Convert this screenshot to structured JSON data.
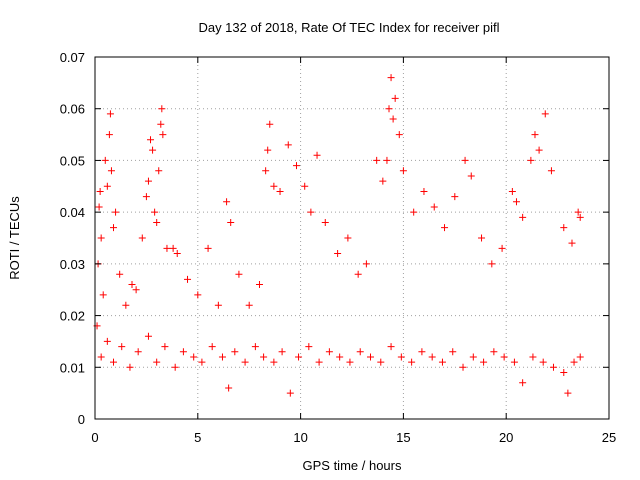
{
  "chart_data": {
    "type": "scatter",
    "title": "Day 132 of 2018, Rate Of TEC Index for receiver pifl",
    "xlabel": "GPS time / hours",
    "ylabel": "ROTI / TECUs",
    "xlim": [
      0,
      25
    ],
    "ylim": [
      0,
      0.07
    ],
    "xticks": [
      0,
      5,
      10,
      15,
      20,
      25
    ],
    "xtick_labels": [
      "0",
      "5",
      "10",
      "15",
      "20",
      "25"
    ],
    "yticks": [
      0,
      0.01,
      0.02,
      0.03,
      0.04,
      0.05,
      0.06,
      0.07
    ],
    "ytick_labels": [
      "0",
      "0.01",
      "0.02",
      "0.03",
      "0.04",
      "0.05",
      "0.06",
      "0.07"
    ],
    "grid": true,
    "marker": "+",
    "color": "#ff0000",
    "series": [
      {
        "name": "",
        "points": [
          [
            0.1,
            0.018
          ],
          [
            0.15,
            0.03
          ],
          [
            0.2,
            0.041
          ],
          [
            0.25,
            0.044
          ],
          [
            0.3,
            0.035
          ],
          [
            0.4,
            0.024
          ],
          [
            0.5,
            0.05
          ],
          [
            0.6,
            0.045
          ],
          [
            0.7,
            0.055
          ],
          [
            0.75,
            0.059
          ],
          [
            0.8,
            0.048
          ],
          [
            0.9,
            0.037
          ],
          [
            1.0,
            0.04
          ],
          [
            1.2,
            0.028
          ],
          [
            1.5,
            0.022
          ],
          [
            1.8,
            0.026
          ],
          [
            2.0,
            0.025
          ],
          [
            2.3,
            0.035
          ],
          [
            2.5,
            0.043
          ],
          [
            2.6,
            0.046
          ],
          [
            2.7,
            0.054
          ],
          [
            2.8,
            0.052
          ],
          [
            2.9,
            0.04
          ],
          [
            3.0,
            0.038
          ],
          [
            3.1,
            0.048
          ],
          [
            3.2,
            0.057
          ],
          [
            3.25,
            0.06
          ],
          [
            3.3,
            0.055
          ],
          [
            3.5,
            0.033
          ],
          [
            3.8,
            0.033
          ],
          [
            4.0,
            0.032
          ],
          [
            4.5,
            0.027
          ],
          [
            5.0,
            0.024
          ],
          [
            5.5,
            0.033
          ],
          [
            6.0,
            0.022
          ],
          [
            6.4,
            0.042
          ],
          [
            6.6,
            0.038
          ],
          [
            7.0,
            0.028
          ],
          [
            7.5,
            0.022
          ],
          [
            8.0,
            0.026
          ],
          [
            8.3,
            0.048
          ],
          [
            8.4,
            0.052
          ],
          [
            8.5,
            0.057
          ],
          [
            8.7,
            0.045
          ],
          [
            9.0,
            0.044
          ],
          [
            9.4,
            0.053
          ],
          [
            9.8,
            0.049
          ],
          [
            10.2,
            0.045
          ],
          [
            10.5,
            0.04
          ],
          [
            10.8,
            0.051
          ],
          [
            11.2,
            0.038
          ],
          [
            11.8,
            0.032
          ],
          [
            12.3,
            0.035
          ],
          [
            12.8,
            0.028
          ],
          [
            13.2,
            0.03
          ],
          [
            13.7,
            0.05
          ],
          [
            14.0,
            0.046
          ],
          [
            14.2,
            0.05
          ],
          [
            14.3,
            0.06
          ],
          [
            14.4,
            0.066
          ],
          [
            14.5,
            0.058
          ],
          [
            14.6,
            0.062
          ],
          [
            14.8,
            0.055
          ],
          [
            15.0,
            0.048
          ],
          [
            15.5,
            0.04
          ],
          [
            16.0,
            0.044
          ],
          [
            16.5,
            0.041
          ],
          [
            17.0,
            0.037
          ],
          [
            17.5,
            0.043
          ],
          [
            18.0,
            0.05
          ],
          [
            18.3,
            0.047
          ],
          [
            18.8,
            0.035
          ],
          [
            19.3,
            0.03
          ],
          [
            19.8,
            0.033
          ],
          [
            20.3,
            0.044
          ],
          [
            20.5,
            0.042
          ],
          [
            20.8,
            0.039
          ],
          [
            21.2,
            0.05
          ],
          [
            21.4,
            0.055
          ],
          [
            21.6,
            0.052
          ],
          [
            21.9,
            0.059
          ],
          [
            22.2,
            0.048
          ],
          [
            22.8,
            0.037
          ],
          [
            23.2,
            0.034
          ],
          [
            23.5,
            0.04
          ],
          [
            23.6,
            0.039
          ],
          [
            0.3,
            0.012
          ],
          [
            0.6,
            0.015
          ],
          [
            0.9,
            0.011
          ],
          [
            1.3,
            0.014
          ],
          [
            1.7,
            0.01
          ],
          [
            2.1,
            0.013
          ],
          [
            2.6,
            0.016
          ],
          [
            3.0,
            0.011
          ],
          [
            3.4,
            0.014
          ],
          [
            3.9,
            0.01
          ],
          [
            4.3,
            0.013
          ],
          [
            4.8,
            0.012
          ],
          [
            5.2,
            0.011
          ],
          [
            5.7,
            0.014
          ],
          [
            6.2,
            0.012
          ],
          [
            6.5,
            0.006
          ],
          [
            6.8,
            0.013
          ],
          [
            7.3,
            0.011
          ],
          [
            7.8,
            0.014
          ],
          [
            8.2,
            0.012
          ],
          [
            8.7,
            0.011
          ],
          [
            9.1,
            0.013
          ],
          [
            9.5,
            0.005
          ],
          [
            9.9,
            0.012
          ],
          [
            10.4,
            0.014
          ],
          [
            10.9,
            0.011
          ],
          [
            11.4,
            0.013
          ],
          [
            11.9,
            0.012
          ],
          [
            12.4,
            0.011
          ],
          [
            12.9,
            0.013
          ],
          [
            13.4,
            0.012
          ],
          [
            13.9,
            0.011
          ],
          [
            14.4,
            0.014
          ],
          [
            14.9,
            0.012
          ],
          [
            15.4,
            0.011
          ],
          [
            15.9,
            0.013
          ],
          [
            16.4,
            0.012
          ],
          [
            16.9,
            0.011
          ],
          [
            17.4,
            0.013
          ],
          [
            17.9,
            0.01
          ],
          [
            18.4,
            0.012
          ],
          [
            18.9,
            0.011
          ],
          [
            19.4,
            0.013
          ],
          [
            19.9,
            0.012
          ],
          [
            20.4,
            0.011
          ],
          [
            20.8,
            0.007
          ],
          [
            21.3,
            0.012
          ],
          [
            21.8,
            0.011
          ],
          [
            22.3,
            0.01
          ],
          [
            22.8,
            0.009
          ],
          [
            23.0,
            0.005
          ],
          [
            23.3,
            0.011
          ],
          [
            23.6,
            0.012
          ]
        ]
      }
    ]
  }
}
